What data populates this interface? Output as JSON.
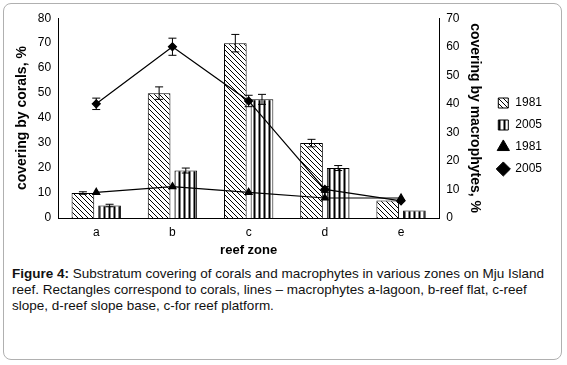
{
  "chart_data": {
    "type": "bar",
    "caption_label": "Figure 4:",
    "caption": "Substratum covering of corals and macrophytes in various zones on Mju Island reef. Rectangles correspond to corals, lines – macrophytes a-lagoon, b-reef flat, c-reef slope, d-reef slope base, c-for reef platform.",
    "x_label": "reef zone",
    "y_label": "covering by corals, %",
    "y2_label": "covering by macrophytes, %",
    "categories": [
      "a",
      "b",
      "c",
      "d",
      "e"
    ],
    "series": [
      {
        "name": "1981",
        "type": "bar",
        "color": "#000000",
        "values": [
          10,
          50,
          70,
          30,
          7
        ],
        "errors": [
          0.5,
          2.5,
          3.5,
          1.5,
          null
        ]
      },
      {
        "name": "2005",
        "type": "bar",
        "color": "#000000",
        "values": [
          5,
          19,
          47.5,
          20,
          3
        ],
        "errors": [
          0.5,
          1,
          2,
          1,
          null
        ]
      },
      {
        "name": "1981",
        "type": "line",
        "axis": "y2",
        "color": "#000000",
        "marker": "triangle",
        "line_style": "solid",
        "values": [
          9,
          11,
          9,
          7,
          7
        ]
      },
      {
        "name": "2005",
        "type": "line",
        "axis": "y2",
        "color": "#000000",
        "marker": "diamond",
        "line_style": "solid",
        "values": [
          40,
          60,
          41,
          10,
          6
        ],
        "errors": [
          2,
          3,
          2,
          1,
          null
        ]
      }
    ],
    "ylim": [
      0,
      80
    ],
    "yticks": [
      0,
      10,
      20,
      30,
      40,
      50,
      60,
      70,
      80
    ],
    "y2lim": [
      0,
      70
    ],
    "y2ticks": [
      0,
      10,
      20,
      30,
      40,
      50,
      60,
      70
    ],
    "grid": false,
    "legend": "right"
  }
}
